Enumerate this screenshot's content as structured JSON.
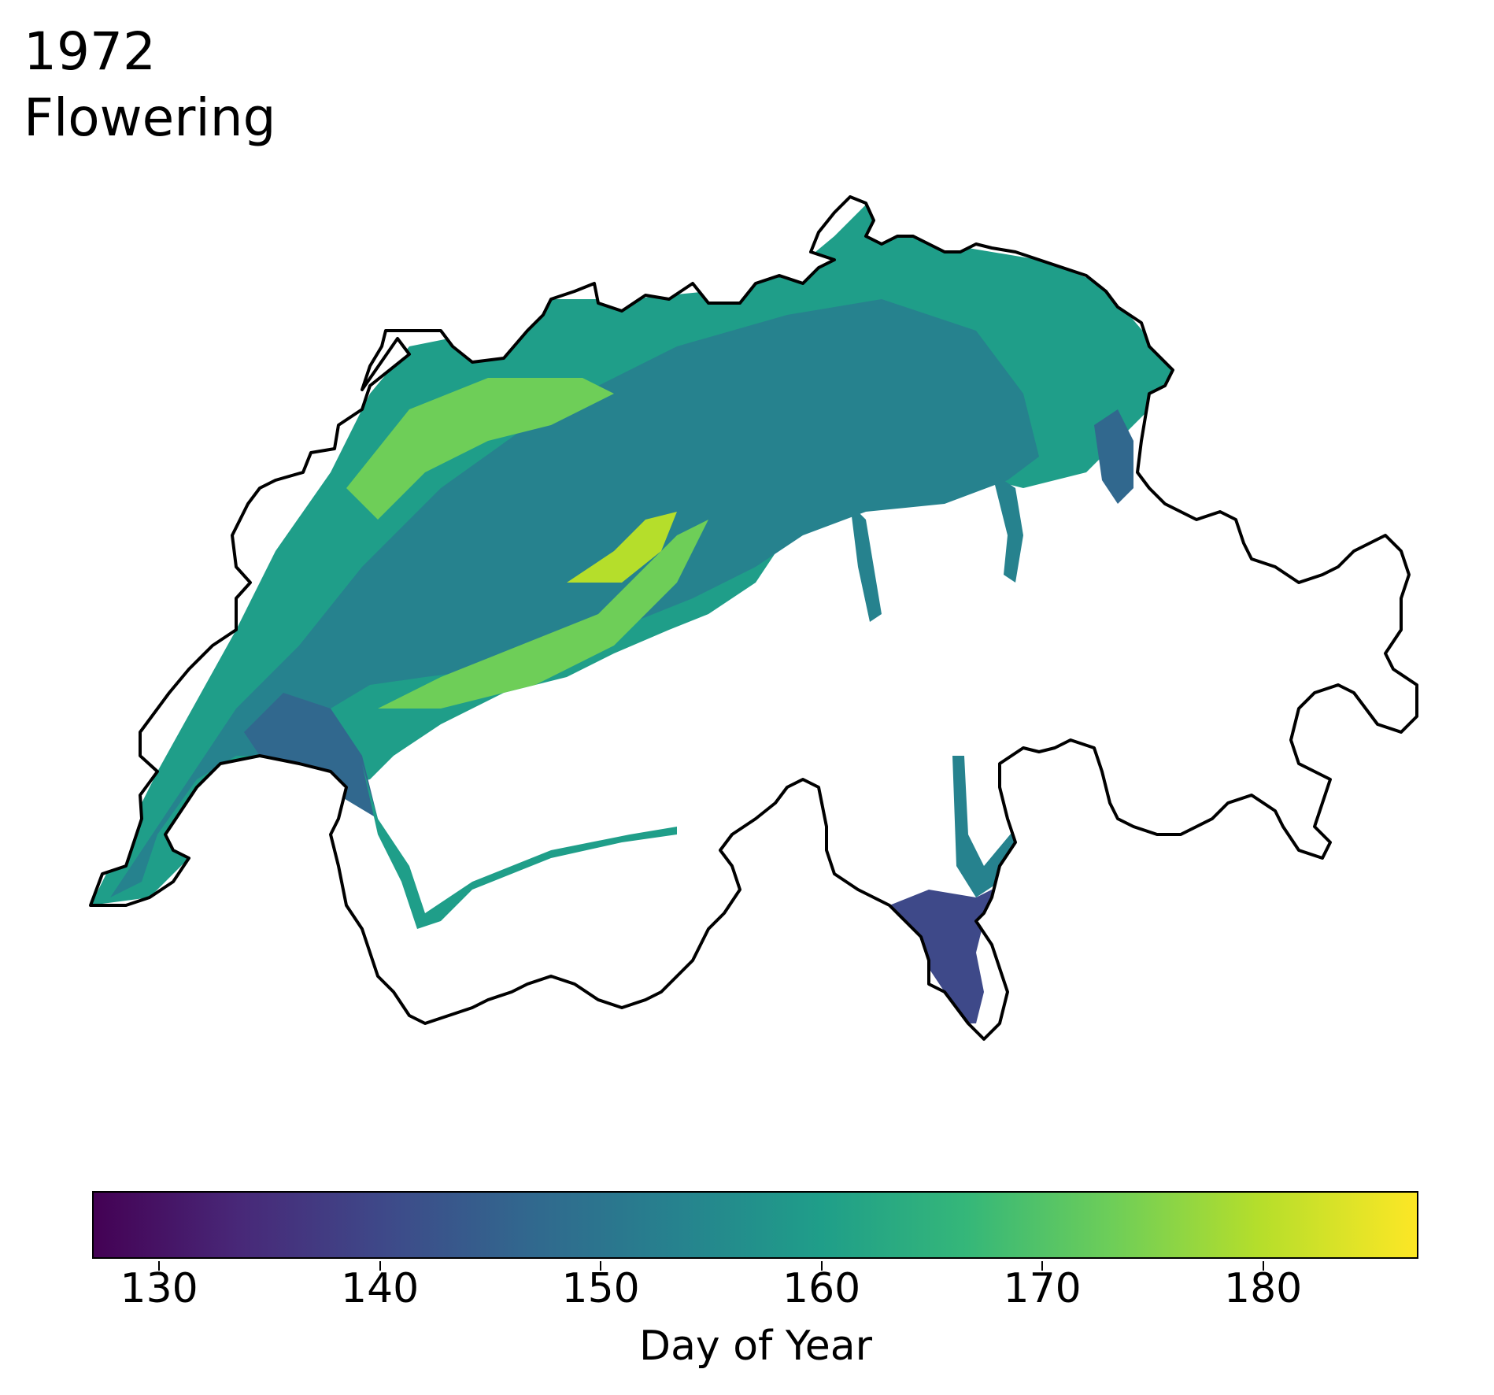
{
  "header": {
    "year": "1972",
    "phase": "Flowering"
  },
  "colorbar": {
    "label": "Day of Year",
    "min": 127,
    "max": 187,
    "ticks": [
      {
        "value": 130,
        "label": "130"
      },
      {
        "value": 140,
        "label": "140"
      },
      {
        "value": 150,
        "label": "150"
      },
      {
        "value": 160,
        "label": "160"
      },
      {
        "value": 170,
        "label": "170"
      },
      {
        "value": 180,
        "label": "180"
      }
    ],
    "colormap": "viridis",
    "stops": [
      "#440154",
      "#482878",
      "#3e4989",
      "#31688e",
      "#26828e",
      "#1f9e89",
      "#35b779",
      "#6ece58",
      "#b5de2b",
      "#fde725"
    ]
  },
  "map": {
    "region": "Switzerland",
    "variable": "Flowering day of year",
    "outline_color": "#000000",
    "no_data_color": "#ffffff"
  }
}
